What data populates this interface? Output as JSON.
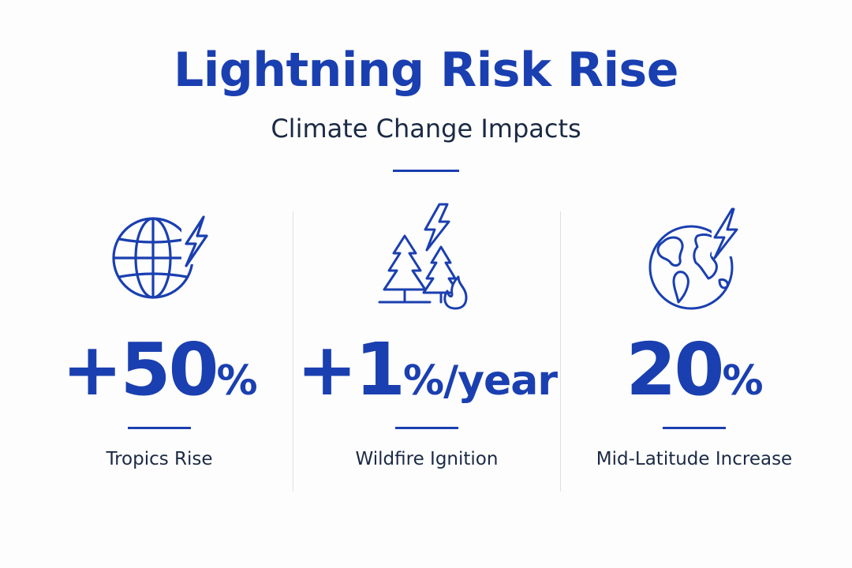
{
  "header": {
    "title": "Lightning Risk Rise",
    "subtitle": "Climate Change Impacts"
  },
  "colors": {
    "accent": "#1a3fb0",
    "text": "#1b2a44",
    "divider": "#dcdfe6",
    "background": "#fdfdfd"
  },
  "stats": [
    {
      "icon": "globe-lightning-icon",
      "value": "+50",
      "unit": "%",
      "label": "Tropics Rise"
    },
    {
      "icon": "trees-fire-lightning-icon",
      "value": "+1",
      "unit": "%/year",
      "label": "Wildfire Ignition"
    },
    {
      "icon": "earth-lightning-icon",
      "value": "20",
      "unit": "%",
      "label": "Mid-Latitude Increase"
    }
  ]
}
